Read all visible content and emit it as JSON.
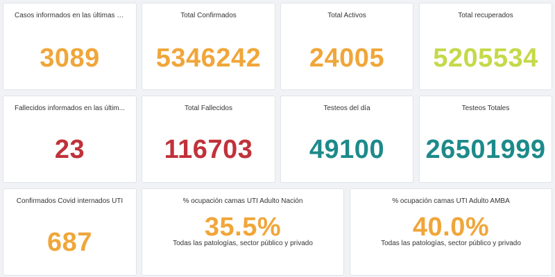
{
  "colors": {
    "orange": "#f0a63a",
    "yellow_green": "#c5d94a",
    "red": "#c0323a",
    "teal": "#1d8a8a"
  },
  "row1": [
    {
      "title": "Casos informados en las últimas 2...",
      "value": "3089",
      "color": "orange"
    },
    {
      "title": "Total Confirmados",
      "value": "5346242",
      "color": "orange"
    },
    {
      "title": "Total Activos",
      "value": "24005",
      "color": "orange"
    },
    {
      "title": "Total recuperados",
      "value": "5205534",
      "color": "yellow_green"
    }
  ],
  "row2": [
    {
      "title": "Fallecidos informados en las últim...",
      "value": "23",
      "color": "red"
    },
    {
      "title": "Total Fallecidos",
      "value": "116703",
      "color": "red"
    },
    {
      "title": "Testeos del día",
      "value": "49100",
      "color": "teal"
    },
    {
      "title": "Testeos Totales",
      "value": "26501999",
      "color": "teal"
    }
  ],
  "row3": [
    {
      "title": "Confirmados Covid internados UTI",
      "value": "687",
      "color": "orange"
    },
    {
      "title": "% ocupación camas UTI Adulto Nación",
      "value": "35.5%",
      "subtitle": "Todas las patologías, sector público y privado",
      "color": "orange"
    },
    {
      "title": "% ocupación camas UTI Adulto AMBA",
      "value": "40.0%",
      "subtitle": "Todas las patologías, sector público y privado",
      "color": "orange"
    }
  ]
}
